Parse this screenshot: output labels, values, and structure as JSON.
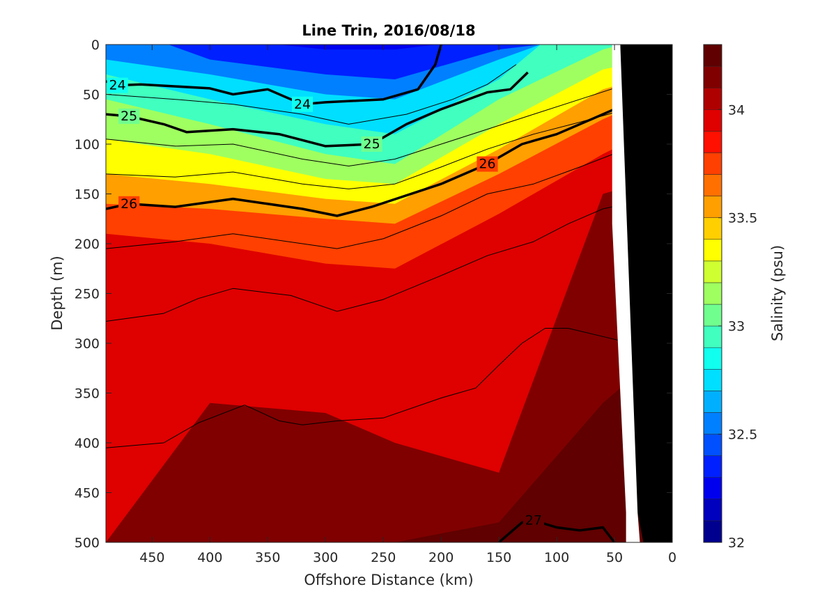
{
  "chart_data": {
    "type": "heatmap",
    "subtype": "filled-contour-section",
    "title": "Line Trin, 2016/08/18",
    "xlabel": "Offshore Distance (km)",
    "ylabel": "Depth (m)",
    "x_reversed": true,
    "y_reversed": true,
    "xlim": [
      490,
      0
    ],
    "ylim": [
      0,
      500
    ],
    "x_ticks": [
      450,
      400,
      350,
      300,
      250,
      200,
      150,
      100,
      50,
      0
    ],
    "y_ticks": [
      0,
      50,
      100,
      150,
      200,
      250,
      300,
      350,
      400,
      450,
      500
    ],
    "grid": false,
    "colorbar": {
      "label": "Salinity (psu)",
      "range": [
        32,
        34.3
      ],
      "step": 0.1,
      "ticks": [
        32,
        32.5,
        33,
        33.5,
        34
      ],
      "colors": [
        "#00008f",
        "#0000bf",
        "#0000ef",
        "#0020ff",
        "#0050ff",
        "#0080ff",
        "#00b0ff",
        "#00dfff",
        "#10ffef",
        "#40ffbf",
        "#70ff8f",
        "#9fff60",
        "#cfff30",
        "#ffff00",
        "#ffcf00",
        "#ff9f00",
        "#ff7000",
        "#ff4000",
        "#ff1000",
        "#df0000",
        "#af0000",
        "#800000",
        "#600000"
      ]
    },
    "salinity_profiles": {
      "x_km": [
        490,
        400,
        300,
        240,
        150,
        60,
        20
      ],
      "layers": [
        {
          "salinity": 32.3,
          "depths_m": [
            null,
            null,
            5,
            5,
            null,
            null,
            null
          ]
        },
        {
          "salinity": 32.5,
          "depths_m": [
            null,
            15,
            30,
            35,
            5,
            null,
            null
          ]
        },
        {
          "salinity": 32.7,
          "depths_m": [
            15,
            30,
            50,
            55,
            15,
            null,
            null
          ]
        },
        {
          "salinity": 32.9,
          "depths_m": [
            30,
            55,
            80,
            90,
            35,
            null,
            null
          ]
        },
        {
          "salinity": 33.1,
          "depths_m": [
            55,
            80,
            110,
            120,
            55,
            5,
            null
          ]
        },
        {
          "salinity": 33.3,
          "depths_m": [
            95,
            110,
            135,
            140,
            80,
            25,
            10
          ]
        },
        {
          "salinity": 33.5,
          "depths_m": [
            130,
            140,
            155,
            160,
            105,
            45,
            25
          ]
        },
        {
          "salinity": 33.7,
          "depths_m": [
            160,
            165,
            175,
            180,
            130,
            75,
            45
          ]
        },
        {
          "salinity": 33.9,
          "depths_m": [
            190,
            200,
            220,
            225,
            170,
            110,
            75
          ]
        },
        {
          "salinity": 34.1,
          "depths_m": [
            500,
            360,
            370,
            400,
            430,
            150,
            130
          ]
        },
        {
          "salinity": 34.2,
          "depths_m": [
            500,
            500,
            500,
            500,
            480,
            360,
            300
          ]
        }
      ]
    },
    "density_contours": [
      {
        "level": "24",
        "bold": true,
        "points": [
          [
            490,
            37
          ],
          [
            480,
            41
          ],
          [
            460,
            40
          ],
          [
            400,
            44
          ],
          [
            380,
            50
          ],
          [
            350,
            45
          ],
          [
            320,
            60
          ],
          [
            300,
            58
          ],
          [
            250,
            55
          ],
          [
            220,
            45
          ],
          [
            205,
            20
          ],
          [
            200,
            0
          ]
        ]
      },
      {
        "level": "25",
        "bold": true,
        "points": [
          [
            490,
            70
          ],
          [
            470,
            72
          ],
          [
            440,
            80
          ],
          [
            420,
            88
          ],
          [
            380,
            85
          ],
          [
            340,
            90
          ],
          [
            300,
            102
          ],
          [
            260,
            100
          ],
          [
            230,
            80
          ],
          [
            200,
            65
          ],
          [
            160,
            48
          ],
          [
            140,
            45
          ],
          [
            125,
            28
          ]
        ]
      },
      {
        "level": "26",
        "bold": true,
        "points": [
          [
            490,
            165
          ],
          [
            470,
            160
          ],
          [
            430,
            163
          ],
          [
            380,
            155
          ],
          [
            320,
            165
          ],
          [
            290,
            172
          ],
          [
            260,
            163
          ],
          [
            200,
            140
          ],
          [
            160,
            120
          ],
          [
            130,
            100
          ],
          [
            100,
            90
          ],
          [
            70,
            75
          ],
          [
            50,
            65
          ],
          [
            40,
            60
          ],
          [
            20,
            30
          ]
        ]
      },
      {
        "level": "27",
        "bold": true,
        "points": [
          [
            150,
            500
          ],
          [
            130,
            480
          ],
          [
            120,
            478
          ],
          [
            100,
            485
          ],
          [
            80,
            488
          ],
          [
            60,
            485
          ],
          [
            50,
            500
          ]
        ]
      },
      {
        "level": "",
        "bold": false,
        "points": [
          [
            490,
            50
          ],
          [
            430,
            55
          ],
          [
            380,
            60
          ],
          [
            320,
            70
          ],
          [
            280,
            80
          ],
          [
            230,
            70
          ],
          [
            190,
            55
          ],
          [
            160,
            40
          ],
          [
            135,
            20
          ]
        ]
      },
      {
        "level": "",
        "bold": false,
        "points": [
          [
            490,
            95
          ],
          [
            430,
            102
          ],
          [
            380,
            100
          ],
          [
            320,
            115
          ],
          [
            280,
            122
          ],
          [
            240,
            115
          ],
          [
            200,
            100
          ],
          [
            160,
            85
          ],
          [
            120,
            70
          ],
          [
            80,
            55
          ],
          [
            40,
            40
          ],
          [
            30,
            15
          ]
        ]
      },
      {
        "level": "",
        "bold": false,
        "points": [
          [
            490,
            130
          ],
          [
            430,
            133
          ],
          [
            380,
            128
          ],
          [
            320,
            140
          ],
          [
            280,
            145
          ],
          [
            240,
            140
          ],
          [
            200,
            123
          ],
          [
            160,
            105
          ],
          [
            120,
            90
          ],
          [
            80,
            78
          ],
          [
            40,
            65
          ],
          [
            25,
            45
          ]
        ]
      },
      {
        "level": "",
        "bold": false,
        "points": [
          [
            490,
            205
          ],
          [
            430,
            198
          ],
          [
            380,
            190
          ],
          [
            320,
            200
          ],
          [
            290,
            205
          ],
          [
            250,
            195
          ],
          [
            200,
            172
          ],
          [
            160,
            150
          ],
          [
            120,
            140
          ],
          [
            80,
            123
          ],
          [
            40,
            105
          ],
          [
            25,
            90
          ]
        ]
      },
      {
        "level": "",
        "bold": false,
        "points": [
          [
            490,
            278
          ],
          [
            440,
            270
          ],
          [
            410,
            255
          ],
          [
            380,
            245
          ],
          [
            330,
            252
          ],
          [
            290,
            268
          ],
          [
            250,
            256
          ],
          [
            200,
            232
          ],
          [
            160,
            212
          ],
          [
            120,
            198
          ],
          [
            90,
            180
          ],
          [
            60,
            165
          ],
          [
            40,
            160
          ]
        ]
      },
      {
        "level": "",
        "bold": false,
        "points": [
          [
            490,
            405
          ],
          [
            440,
            400
          ],
          [
            410,
            380
          ],
          [
            370,
            362
          ],
          [
            340,
            378
          ],
          [
            320,
            382
          ],
          [
            290,
            378
          ],
          [
            250,
            375
          ],
          [
            200,
            355
          ],
          [
            170,
            345
          ],
          [
            150,
            322
          ],
          [
            130,
            300
          ],
          [
            110,
            285
          ],
          [
            90,
            285
          ],
          [
            50,
            296
          ],
          [
            30,
            302
          ]
        ]
      }
    ],
    "land_mask": {
      "color": "#000000",
      "points": [
        [
          0,
          0
        ],
        [
          0,
          500
        ],
        [
          25,
          500
        ],
        [
          30,
          470
        ],
        [
          45,
          100
        ],
        [
          45,
          0
        ]
      ]
    }
  }
}
